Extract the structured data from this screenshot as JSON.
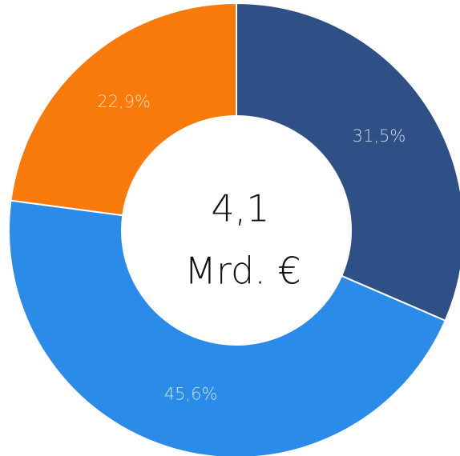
{
  "chart_data": {
    "type": "donut",
    "categories": [
      null,
      null,
      null
    ],
    "values": [
      31.5,
      45.6,
      22.9
    ],
    "value_labels": [
      "31,5%",
      "45,6%",
      "22,9%"
    ],
    "colors": [
      "#2f5086",
      "#2a8be8",
      "#f77a0a"
    ],
    "center_label": [
      "4,1",
      "Mrd. €"
    ]
  }
}
